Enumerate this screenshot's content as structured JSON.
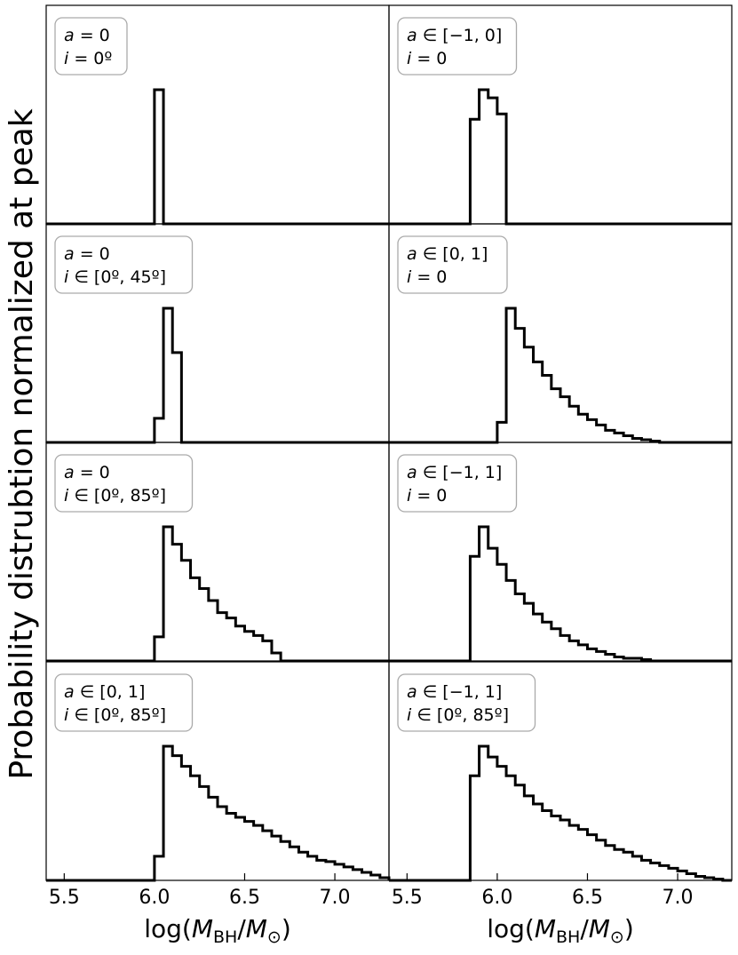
{
  "ylabel": "Probability distrubtion normalized at peak",
  "xlabel": "log(M_BH/M_⊙)",
  "chart_data": {
    "type": "bar",
    "xlim": [
      5.4,
      7.3
    ],
    "ylim": [
      0,
      1.02
    ],
    "xticks": [
      "5.5",
      "6.0",
      "6.5",
      "7.0"
    ],
    "bin_width": 0.05,
    "grid": false,
    "panels": [
      {
        "name": "a0-i0",
        "label_line1": "a = 0",
        "label_line2": "i = 0º",
        "bins_start": 6.0,
        "values": [
          1.0
        ]
      },
      {
        "name": "am10-i0",
        "label_line1": "a ∈ [−1, 0]",
        "label_line2": "i = 0",
        "bins_start": 5.85,
        "values": [
          0.78,
          1.0,
          0.94,
          0.82
        ]
      },
      {
        "name": "a0-i045",
        "label_line1": "a = 0",
        "label_line2": "i ∈ [0º, 45º]",
        "bins_start": 6.0,
        "values": [
          0.18,
          1.0,
          0.67
        ]
      },
      {
        "name": "a01-i0",
        "label_line1": "a ∈ [0, 1]",
        "label_line2": "i = 0",
        "bins_start": 6.0,
        "values": [
          0.15,
          1.0,
          0.85,
          0.71,
          0.6,
          0.5,
          0.4,
          0.34,
          0.27,
          0.21,
          0.17,
          0.13,
          0.09,
          0.07,
          0.05,
          0.03,
          0.02,
          0.01
        ]
      },
      {
        "name": "a0-i085",
        "label_line1": "a = 0",
        "label_line2": "i ∈ [0º, 85º]",
        "bins_start": 6.0,
        "values": [
          0.18,
          1.0,
          0.87,
          0.75,
          0.62,
          0.54,
          0.45,
          0.36,
          0.32,
          0.26,
          0.22,
          0.19,
          0.15,
          0.06
        ]
      },
      {
        "name": "am11-i0",
        "label_line1": "a ∈ [−1, 1]",
        "label_line2": "i = 0",
        "bins_start": 5.85,
        "values": [
          0.78,
          1.0,
          0.84,
          0.72,
          0.6,
          0.5,
          0.43,
          0.35,
          0.29,
          0.24,
          0.19,
          0.15,
          0.12,
          0.09,
          0.07,
          0.05,
          0.03,
          0.02,
          0.02,
          0.01
        ]
      },
      {
        "name": "a01-i085",
        "label_line1": "a ∈ [0, 1]",
        "label_line2": "i ∈ [0º, 85º]",
        "bins_start": 6.0,
        "values": [
          0.18,
          1.0,
          0.93,
          0.85,
          0.78,
          0.7,
          0.62,
          0.55,
          0.5,
          0.47,
          0.44,
          0.41,
          0.37,
          0.33,
          0.29,
          0.25,
          0.21,
          0.18,
          0.15,
          0.14,
          0.12,
          0.1,
          0.08,
          0.06,
          0.04,
          0.02
        ]
      },
      {
        "name": "am11-i085",
        "label_line1": "a ∈ [−1, 1]",
        "label_line2": "i ∈ [0º, 85º]",
        "bins_start": 5.85,
        "values": [
          0.78,
          1.0,
          0.92,
          0.85,
          0.78,
          0.71,
          0.63,
          0.57,
          0.52,
          0.48,
          0.45,
          0.41,
          0.38,
          0.34,
          0.3,
          0.26,
          0.23,
          0.21,
          0.18,
          0.15,
          0.13,
          0.11,
          0.09,
          0.07,
          0.05,
          0.03,
          0.02,
          0.01
        ]
      }
    ]
  }
}
